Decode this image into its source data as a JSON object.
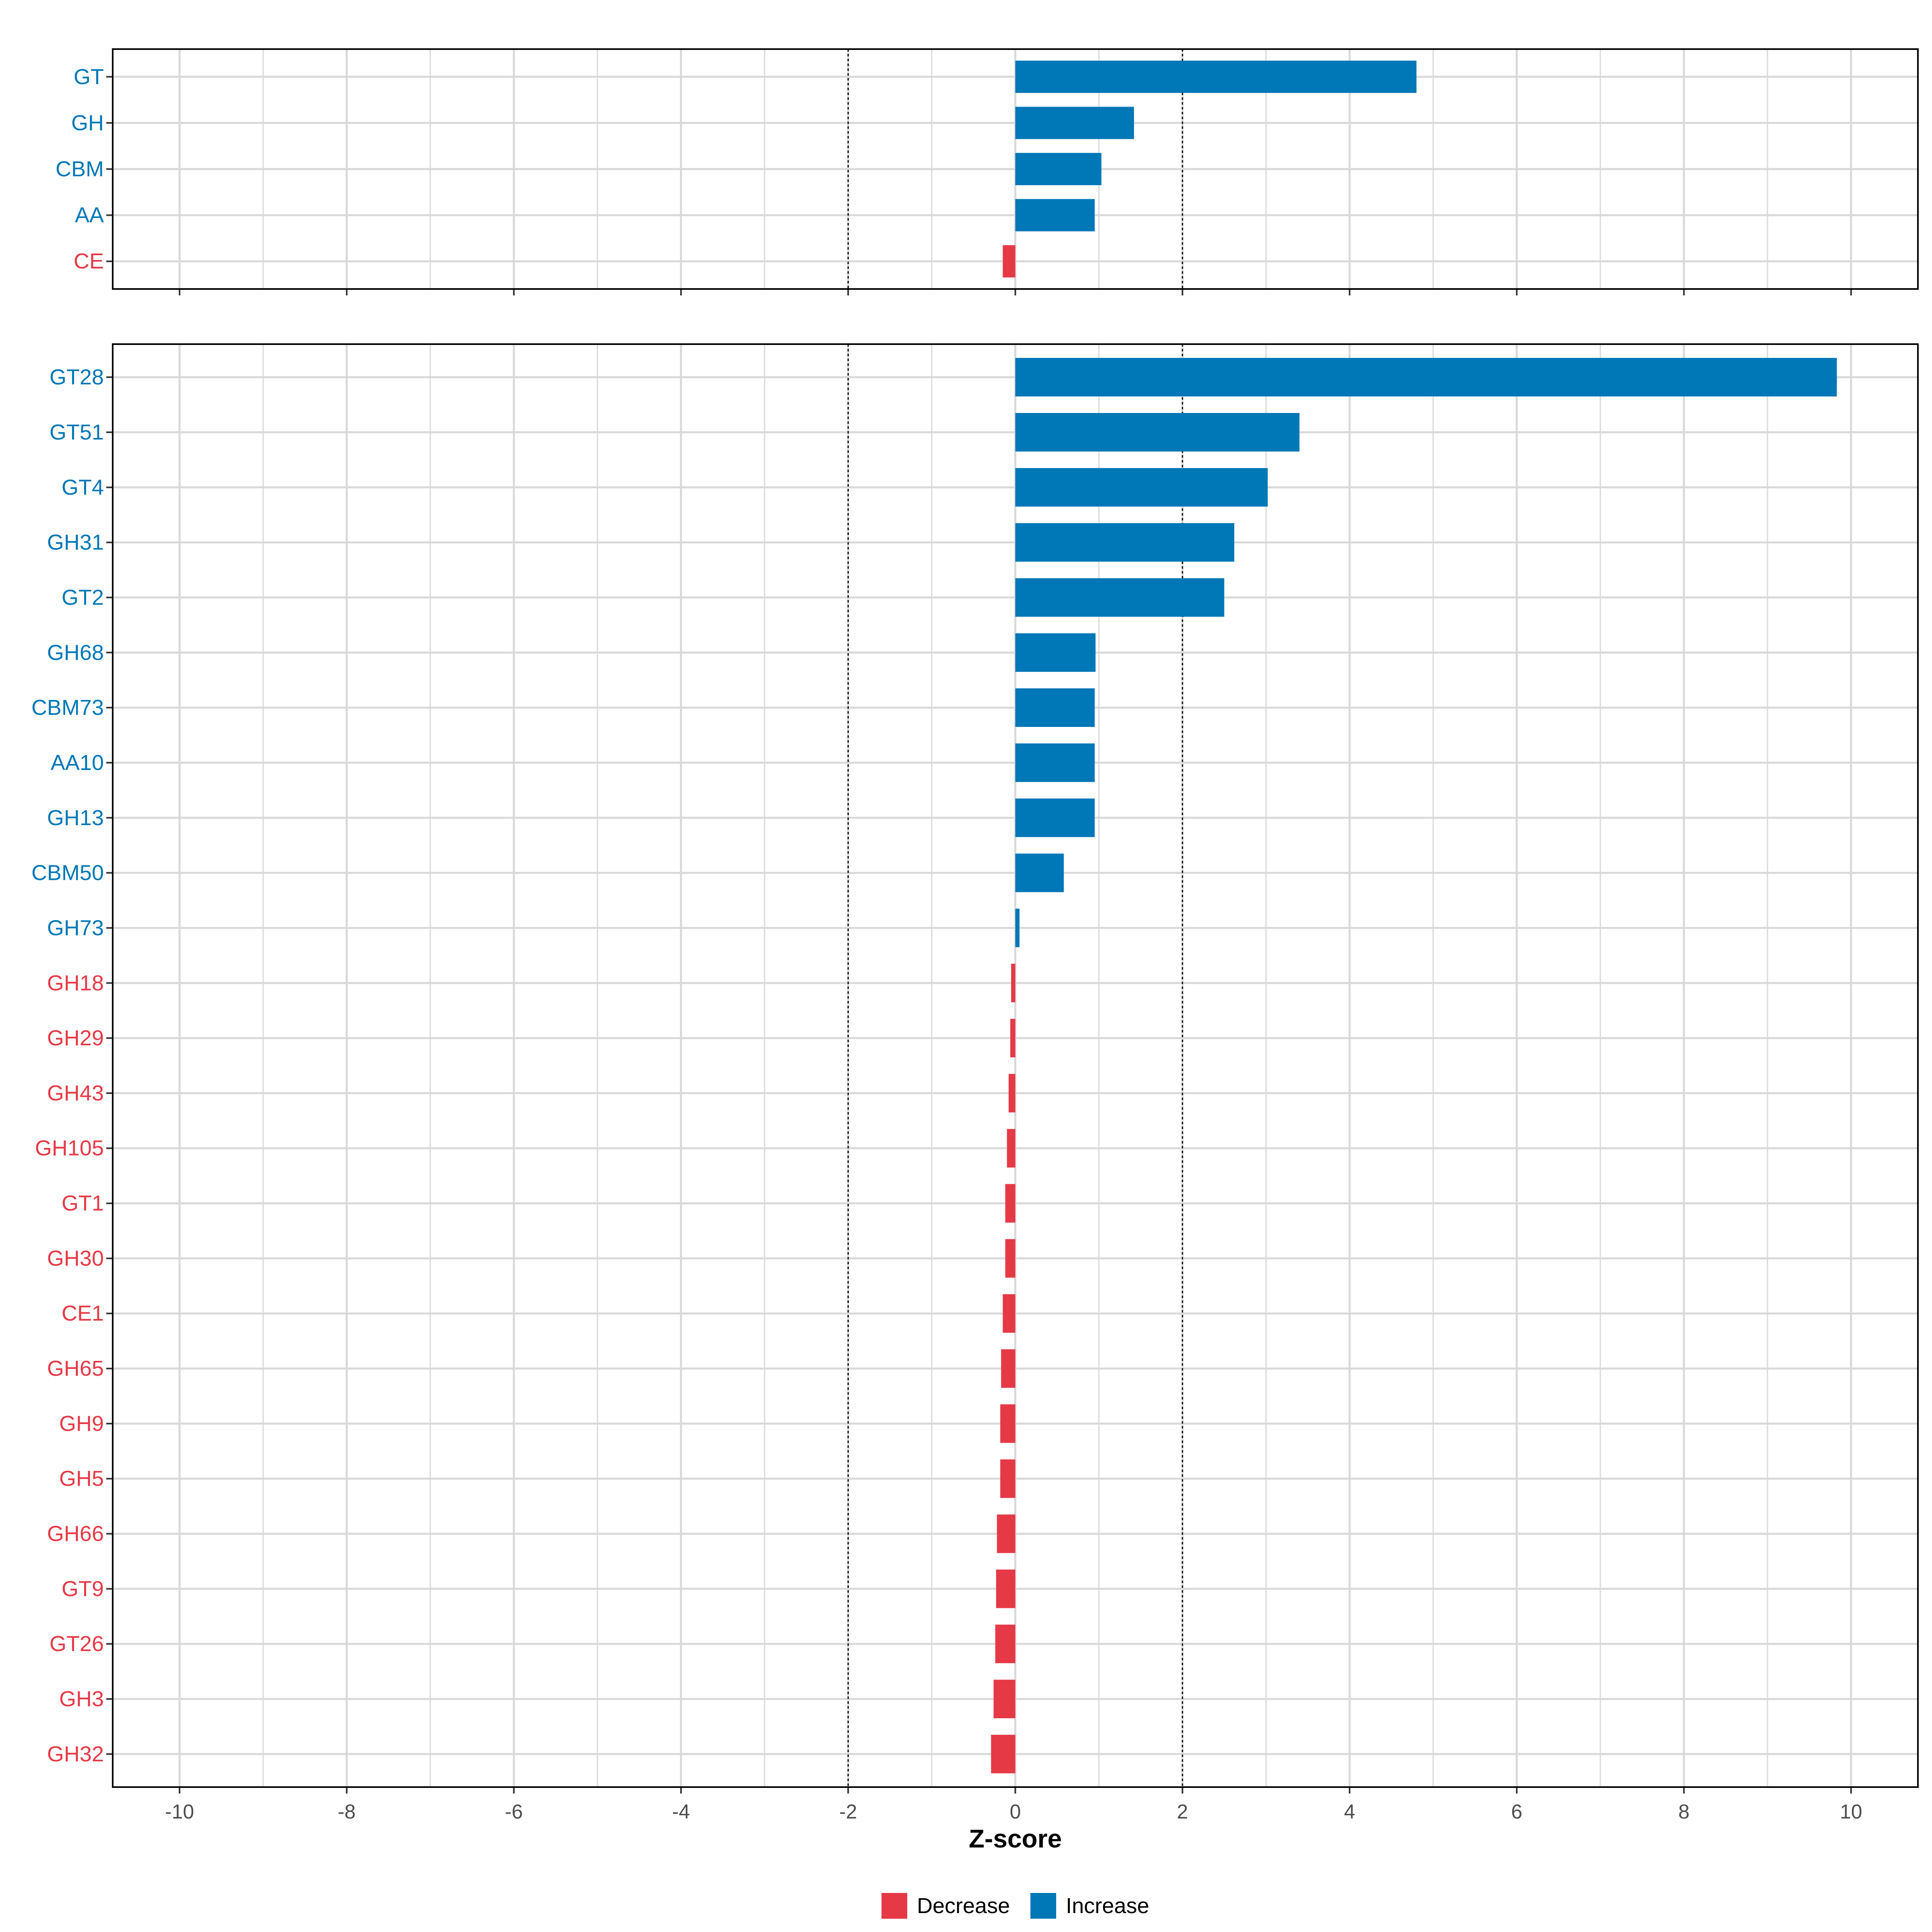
{
  "colors": {
    "increase": "#0077b6",
    "decrease": "#e63946"
  },
  "chart_data": {
    "type": "bar",
    "orientation": "horizontal",
    "xlabel": "Z-score",
    "xlim": [
      -10.8,
      10.8
    ],
    "x_ticks": [
      -10,
      -8,
      -6,
      -4,
      -2,
      0,
      2,
      4,
      6,
      8,
      10
    ],
    "x_tick_labels": [
      "-10",
      "-8",
      "-6",
      "-4",
      "-2",
      "0",
      "2",
      "4",
      "6",
      "8",
      "10"
    ],
    "reference_lines": [
      -2,
      2
    ],
    "grid": true,
    "legend": {
      "placement": "bottom",
      "entries": [
        {
          "label": "Decrease",
          "color": "#e63946"
        },
        {
          "label": "Increase",
          "color": "#0077b6"
        }
      ]
    },
    "panels": [
      {
        "categories": [
          "GT",
          "GH",
          "CBM",
          "AA",
          "CE"
        ],
        "values": [
          4.8,
          1.42,
          1.03,
          0.95,
          -0.15
        ]
      },
      {
        "categories": [
          "GT28",
          "GT51",
          "GT4",
          "GH31",
          "GT2",
          "GH68",
          "CBM73",
          "AA10",
          "GH13",
          "CBM50",
          "GH73",
          "GH18",
          "GH29",
          "GH43",
          "GH105",
          "GT1",
          "GH30",
          "CE1",
          "GH65",
          "GH9",
          "GH5",
          "GH66",
          "GT9",
          "GT26",
          "GH3",
          "GH32"
        ],
        "values": [
          9.83,
          3.4,
          3.02,
          2.62,
          2.5,
          0.96,
          0.95,
          0.95,
          0.95,
          0.58,
          0.05,
          -0.05,
          -0.06,
          -0.08,
          -0.1,
          -0.12,
          -0.12,
          -0.15,
          -0.17,
          -0.18,
          -0.18,
          -0.22,
          -0.23,
          -0.24,
          -0.26,
          -0.29
        ]
      }
    ]
  }
}
